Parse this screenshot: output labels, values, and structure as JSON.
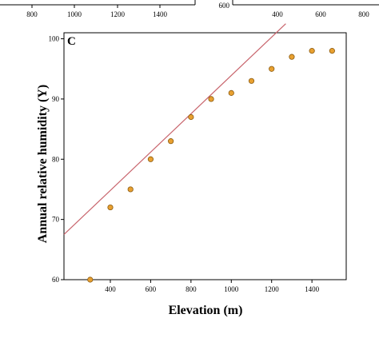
{
  "top_left_strip": {
    "tick_labels": [
      "800",
      "1000",
      "1200",
      "1400"
    ]
  },
  "top_right_strip": {
    "y_tick_label": "600",
    "tick_labels": [
      "400",
      "600",
      "800"
    ]
  },
  "colors": {
    "point_fill": "#e8a030",
    "point_stroke": "#8a5a10",
    "fit_line": "#c8646c",
    "axis": "#000000"
  },
  "chart_data": {
    "type": "scatter",
    "panel_label": "C",
    "xlabel": "Elevation (m)",
    "ylabel": "Annual relative humidity (Y)",
    "xlim": [
      170,
      1570
    ],
    "ylim": [
      60,
      101
    ],
    "xticks": [
      400,
      600,
      800,
      1000,
      1200,
      1400
    ],
    "yticks": [
      60,
      70,
      80,
      90,
      100
    ],
    "grid": false,
    "points": [
      {
        "x": 300,
        "y": 60
      },
      {
        "x": 400,
        "y": 72
      },
      {
        "x": 500,
        "y": 75
      },
      {
        "x": 600,
        "y": 80
      },
      {
        "x": 700,
        "y": 83
      },
      {
        "x": 800,
        "y": 87
      },
      {
        "x": 900,
        "y": 90
      },
      {
        "x": 1000,
        "y": 91
      },
      {
        "x": 1100,
        "y": 93
      },
      {
        "x": 1200,
        "y": 95
      },
      {
        "x": 1300,
        "y": 97
      },
      {
        "x": 1400,
        "y": 98
      },
      {
        "x": 1500,
        "y": 98
      }
    ],
    "fit_line": {
      "x": [
        170,
        1270
      ],
      "y": [
        67.5,
        102.5
      ]
    }
  }
}
